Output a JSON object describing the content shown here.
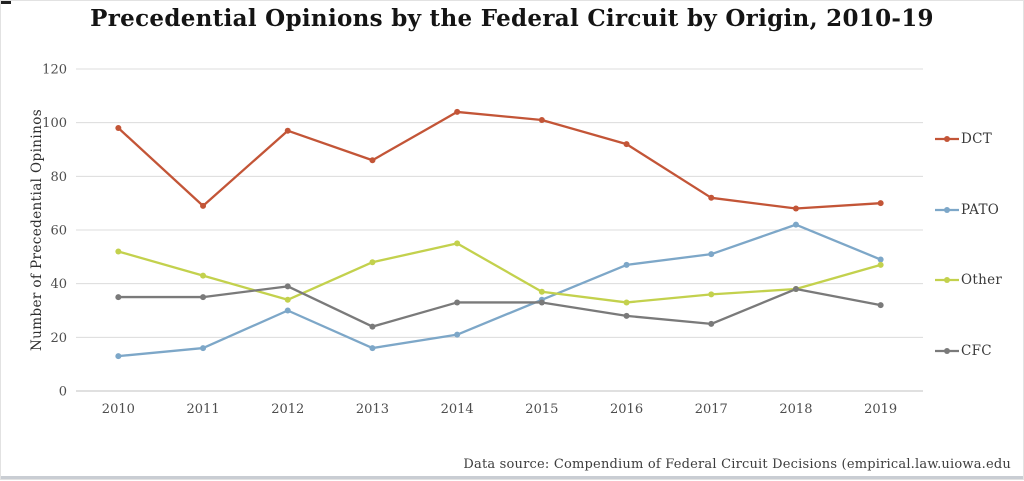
{
  "title": "Precedential Opinions by the Federal Circuit by Origin, 2010-19",
  "footer": "Data source: Compendium of Federal Circuit Decisions (empirical.law.uiowa.edu",
  "chart_data": {
    "type": "line",
    "title": "Precedential Opinions by the Federal Circuit by Origin, 2010-19",
    "xlabel": "",
    "ylabel": "Number of Precedential Opininos",
    "categories": [
      "2010",
      "2011",
      "2012",
      "2013",
      "2014",
      "2015",
      "2016",
      "2017",
      "2018",
      "2019"
    ],
    "series": [
      {
        "name": "DCT",
        "color": "#c35537",
        "values": [
          98,
          69,
          97,
          86,
          104,
          101,
          92,
          72,
          68,
          70
        ]
      },
      {
        "name": "PATO",
        "color": "#7da7c8",
        "values": [
          13,
          16,
          30,
          16,
          21,
          34,
          47,
          51,
          62,
          49
        ]
      },
      {
        "name": "Other",
        "color": "#c3d14d",
        "values": [
          52,
          43,
          34,
          48,
          55,
          37,
          33,
          36,
          38,
          47
        ]
      },
      {
        "name": "CFC",
        "color": "#7a7a7a",
        "values": [
          35,
          35,
          39,
          24,
          33,
          33,
          28,
          25,
          38,
          32
        ]
      }
    ],
    "ylim": [
      0,
      120
    ],
    "y_ticks": [
      0,
      20,
      40,
      60,
      80,
      100,
      120
    ],
    "grid": true,
    "legend_position": "right",
    "colors": {
      "gridline": "#dcdcdc",
      "axis_line": "#c0c0c0",
      "tick_text": "#4d4d4d"
    }
  }
}
